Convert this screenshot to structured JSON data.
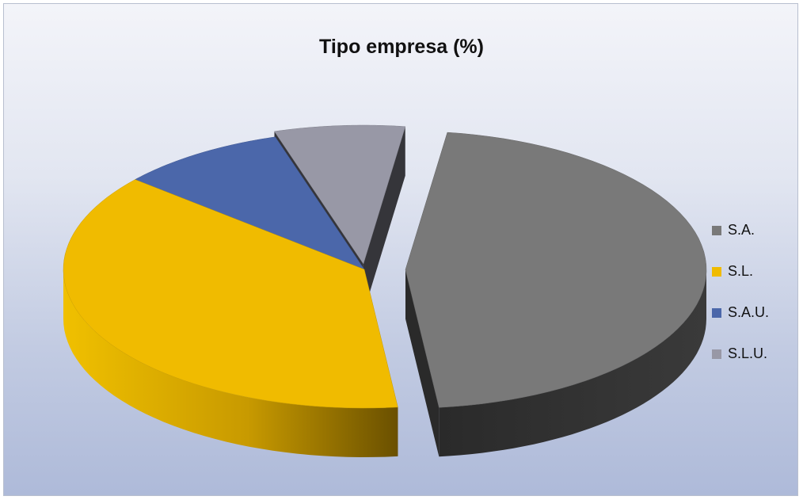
{
  "chart_data": {
    "type": "pie",
    "title": "Tipo empresa (%)",
    "categories": [
      "S.A.",
      "S.L.",
      "S.A.U.",
      "S.L.U."
    ],
    "values": [
      46,
      38,
      9,
      7
    ],
    "exploded": true,
    "three_d": true,
    "legend_position": "right",
    "colors": [
      "#797979",
      "#f0bb00",
      "#4b67aa",
      "#9898a6"
    ]
  }
}
